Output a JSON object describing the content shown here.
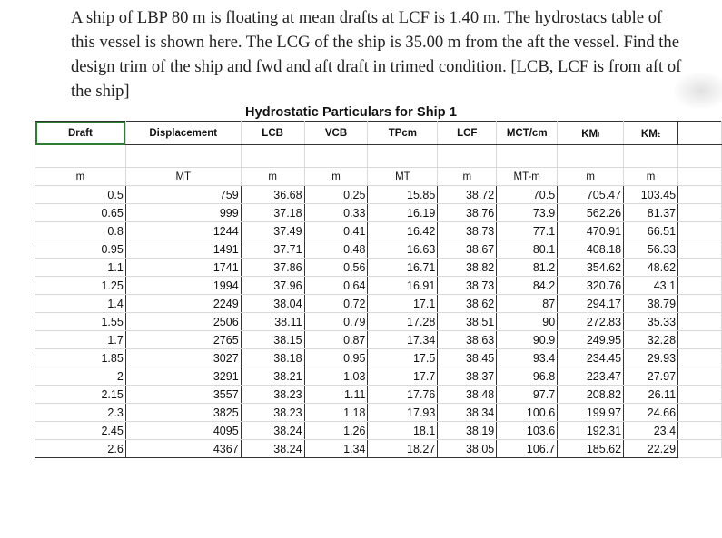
{
  "question": {
    "lines": [
      "A ship of LBP 80 m is floating at mean drafts at LCF is 1.40 m.  The hydrostacs table of",
      "this vessel is shown here. The LCG of the ship is  35.00 m from the aft the vessel. Find the",
      "design trim of the ship and fwd and aft draft in trimed condition. [LCB, LCF is from aft of",
      "the ship]"
    ]
  },
  "table": {
    "title": "Hydrostatic Particulars for Ship 1",
    "headers": [
      "Draft",
      "Displacement",
      "LCB",
      "VCB",
      "TPcm",
      "LCF",
      "MCT/cm",
      "KMₗ",
      "KMₜ"
    ],
    "units": [
      "m",
      "MT",
      "m",
      "m",
      "MT",
      "m",
      "MT-m",
      "m",
      "m"
    ],
    "rows": [
      [
        "0.5",
        "759",
        "36.68",
        "0.25",
        "15.85",
        "38.72",
        "70.5",
        "705.47",
        "103.45"
      ],
      [
        "0.65",
        "999",
        "37.18",
        "0.33",
        "16.19",
        "38.76",
        "73.9",
        "562.26",
        "81.37"
      ],
      [
        "0.8",
        "1244",
        "37.49",
        "0.41",
        "16.42",
        "38.73",
        "77.1",
        "470.91",
        "66.51"
      ],
      [
        "0.95",
        "1491",
        "37.71",
        "0.48",
        "16.63",
        "38.67",
        "80.1",
        "408.18",
        "56.33"
      ],
      [
        "1.1",
        "1741",
        "37.86",
        "0.56",
        "16.71",
        "38.82",
        "81.2",
        "354.62",
        "48.62"
      ],
      [
        "1.25",
        "1994",
        "37.96",
        "0.64",
        "16.91",
        "38.73",
        "84.2",
        "320.76",
        "43.1"
      ],
      [
        "1.4",
        "2249",
        "38.04",
        "0.72",
        "17.1",
        "38.62",
        "87",
        "294.17",
        "38.79"
      ],
      [
        "1.55",
        "2506",
        "38.11",
        "0.79",
        "17.28",
        "38.51",
        "90",
        "272.83",
        "35.33"
      ],
      [
        "1.7",
        "2765",
        "38.15",
        "0.87",
        "17.34",
        "38.63",
        "90.9",
        "249.95",
        "32.28"
      ],
      [
        "1.85",
        "3027",
        "38.18",
        "0.95",
        "17.5",
        "38.45",
        "93.4",
        "234.45",
        "29.93"
      ],
      [
        "2",
        "3291",
        "38.21",
        "1.03",
        "17.7",
        "38.37",
        "96.8",
        "223.47",
        "27.97"
      ],
      [
        "2.15",
        "3557",
        "38.23",
        "1.11",
        "17.76",
        "38.48",
        "97.7",
        "208.82",
        "26.11"
      ],
      [
        "2.3",
        "3825",
        "38.23",
        "1.18",
        "17.93",
        "38.34",
        "100.6",
        "199.97",
        "24.66"
      ],
      [
        "2.45",
        "4095",
        "38.24",
        "1.26",
        "18.1",
        "38.19",
        "103.6",
        "192.31",
        "23.4"
      ],
      [
        "2.6",
        "4367",
        "38.24",
        "1.34",
        "18.27",
        "38.05",
        "106.7",
        "185.62",
        "22.29"
      ]
    ]
  }
}
